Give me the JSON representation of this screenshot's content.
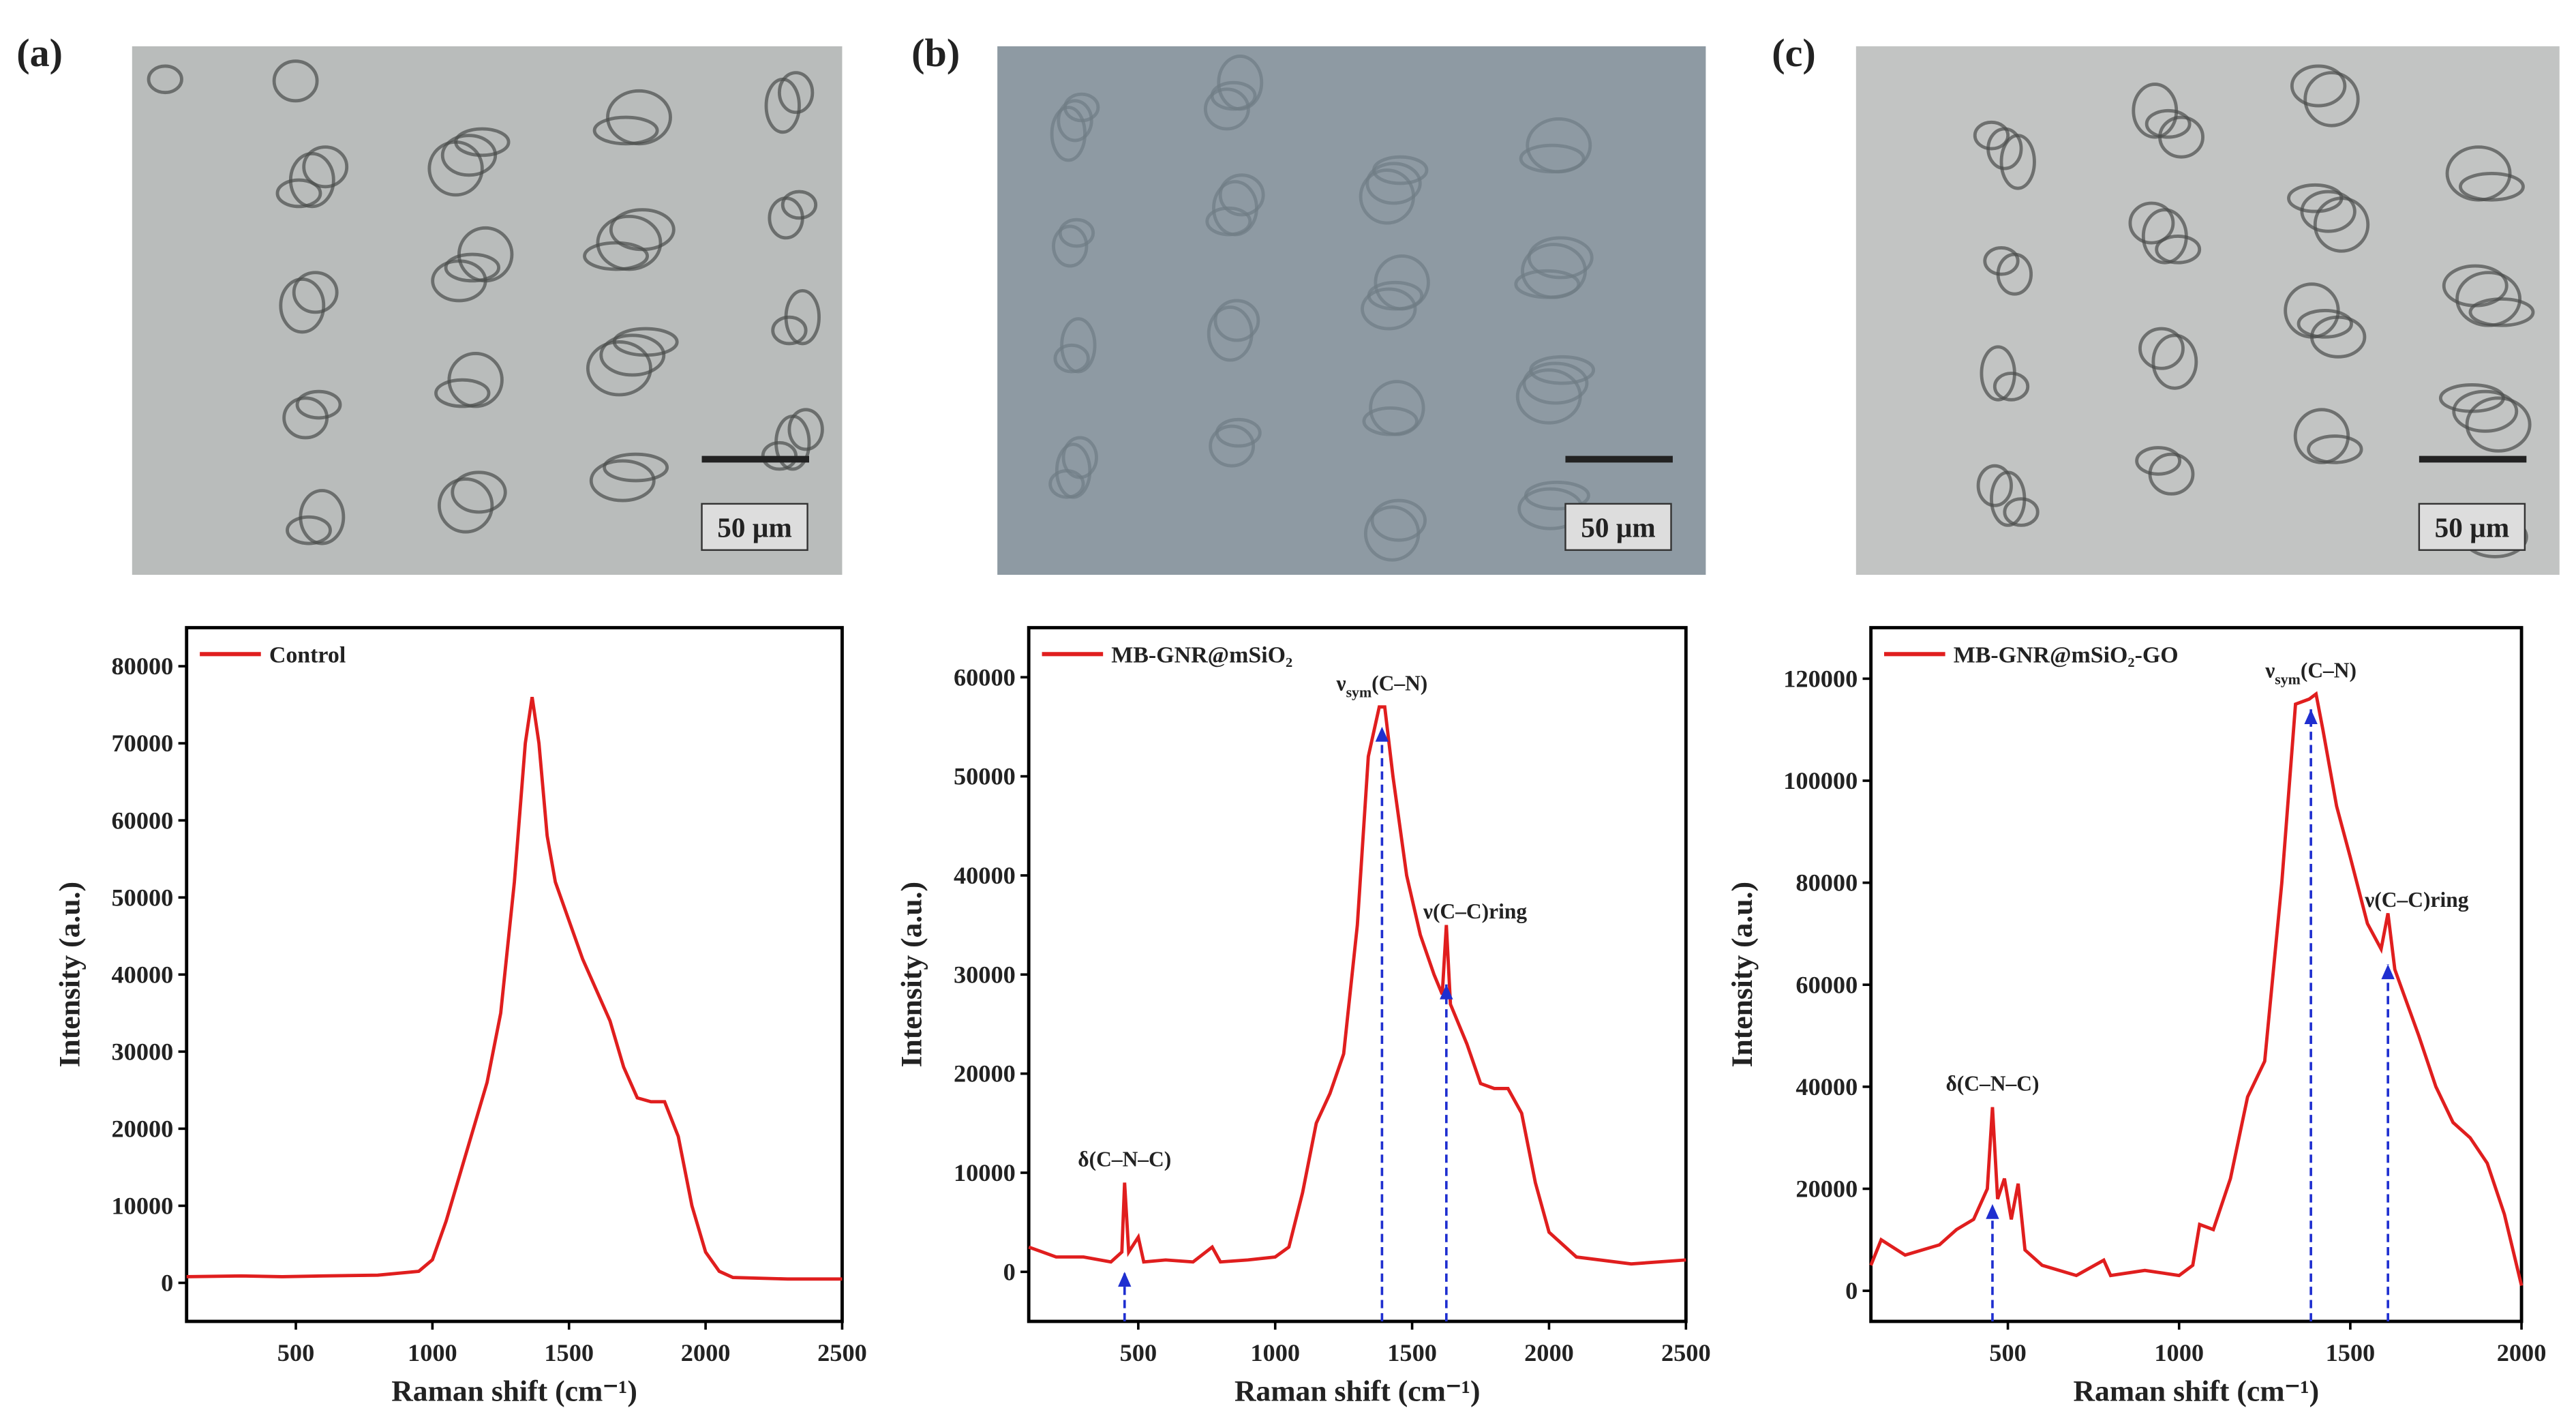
{
  "chart_data": [
    {
      "type": "line",
      "panel": "(a)",
      "scale_bar": "50 µm",
      "x_label": "Raman shift (cm⁻¹)",
      "y_label": "Intensity (a.u.)",
      "xlim": [
        100,
        2500
      ],
      "ylim": [
        -5000,
        85000
      ],
      "xticks": [
        500,
        1000,
        1500,
        2000,
        2500
      ],
      "yticks": [
        0,
        10000,
        20000,
        30000,
        40000,
        50000,
        60000,
        70000,
        80000
      ],
      "x": [
        100,
        300,
        450,
        600,
        800,
        950,
        1000,
        1050,
        1100,
        1150,
        1200,
        1250,
        1300,
        1340,
        1365,
        1390,
        1420,
        1450,
        1500,
        1550,
        1600,
        1650,
        1700,
        1750,
        1800,
        1850,
        1900,
        1950,
        2000,
        2050,
        2100,
        2300,
        2500
      ],
      "series": [
        {
          "name": "Control",
          "color": "#e01e1e",
          "values": [
            800,
            900,
            800,
            900,
            1000,
            1500,
            3000,
            8000,
            14000,
            20000,
            26000,
            35000,
            52000,
            70000,
            76000,
            70000,
            58000,
            52000,
            47000,
            42000,
            38000,
            34000,
            28000,
            24000,
            23500,
            23500,
            19000,
            10000,
            4000,
            1500,
            700,
            500,
            500
          ]
        }
      ],
      "annotations": []
    },
    {
      "type": "line",
      "panel": "(b)",
      "scale_bar": "50 µm",
      "x_label": "Raman shift (cm⁻¹)",
      "y_label": "Intensity (a.u.)",
      "xlim": [
        100,
        2500
      ],
      "ylim": [
        -5000,
        65000
      ],
      "xticks": [
        500,
        1000,
        1500,
        2000,
        2500
      ],
      "yticks": [
        0,
        10000,
        20000,
        30000,
        40000,
        50000,
        60000
      ],
      "x": [
        100,
        200,
        300,
        400,
        440,
        450,
        465,
        500,
        520,
        600,
        700,
        770,
        800,
        900,
        1000,
        1050,
        1100,
        1150,
        1200,
        1250,
        1300,
        1340,
        1380,
        1400,
        1430,
        1480,
        1530,
        1580,
        1610,
        1625,
        1640,
        1700,
        1750,
        1800,
        1850,
        1900,
        1950,
        2000,
        2100,
        2300,
        2500
      ],
      "series": [
        {
          "name": "MB-GNR@mSiO₂",
          "color": "#e01e1e",
          "values": [
            2500,
            1500,
            1500,
            1000,
            2000,
            9000,
            2000,
            3500,
            1000,
            1200,
            1000,
            2500,
            1000,
            1200,
            1500,
            2500,
            8000,
            15000,
            18000,
            22000,
            35000,
            52000,
            57000,
            57000,
            50000,
            40000,
            34000,
            30000,
            28000,
            35000,
            27000,
            23000,
            19000,
            18500,
            18500,
            16000,
            9000,
            4000,
            1500,
            800,
            1200
          ]
        }
      ],
      "annotations": [
        {
          "parts": [
            "δ(C–N–C)"
          ],
          "x": 450,
          "y": 0
        },
        {
          "parts": [
            "ν",
            "sym",
            "(C–N)"
          ],
          "x": 1390,
          "y": 55000
        },
        {
          "parts": [
            "ν(C–C)ring"
          ],
          "x": 1625,
          "y": 29000
        }
      ]
    },
    {
      "type": "line",
      "panel": "(c)",
      "scale_bar": "50 µm",
      "x_label": "Raman shift (cm⁻¹)",
      "y_label": "Intensity (a.u.)",
      "xlim": [
        100,
        2000
      ],
      "ylim": [
        -6000,
        130000
      ],
      "xticks": [
        500,
        1000,
        1500,
        2000
      ],
      "yticks": [
        0,
        20000,
        40000,
        60000,
        80000,
        100000,
        120000
      ],
      "x": [
        100,
        130,
        200,
        300,
        350,
        400,
        440,
        455,
        470,
        490,
        510,
        530,
        550,
        600,
        700,
        780,
        800,
        900,
        1000,
        1040,
        1060,
        1100,
        1150,
        1200,
        1250,
        1300,
        1340,
        1380,
        1400,
        1420,
        1460,
        1500,
        1550,
        1590,
        1610,
        1630,
        1700,
        1750,
        1800,
        1850,
        1900,
        1950,
        2000
      ],
      "series": [
        {
          "name": "MB-GNR@mSiO₂-GO",
          "color": "#e01e1e",
          "values": [
            5000,
            10000,
            7000,
            9000,
            12000,
            14000,
            20000,
            36000,
            18000,
            22000,
            14000,
            21000,
            8000,
            5000,
            3000,
            6000,
            3000,
            4000,
            3000,
            5000,
            13000,
            12000,
            22000,
            38000,
            45000,
            80000,
            115000,
            116000,
            117000,
            110000,
            95000,
            85000,
            72000,
            67000,
            74000,
            63000,
            50000,
            40000,
            33000,
            30000,
            25000,
            15000,
            1000
          ]
        }
      ],
      "annotations": [
        {
          "parts": [
            "δ(C–N–C)"
          ],
          "x": 455,
          "y": 17000
        },
        {
          "parts": [
            "ν",
            "sym",
            "(C–N)"
          ],
          "x": 1385,
          "y": 114000
        },
        {
          "parts": [
            "ν(C–C)ring"
          ],
          "x": 1610,
          "y": 64000
        }
      ]
    }
  ]
}
